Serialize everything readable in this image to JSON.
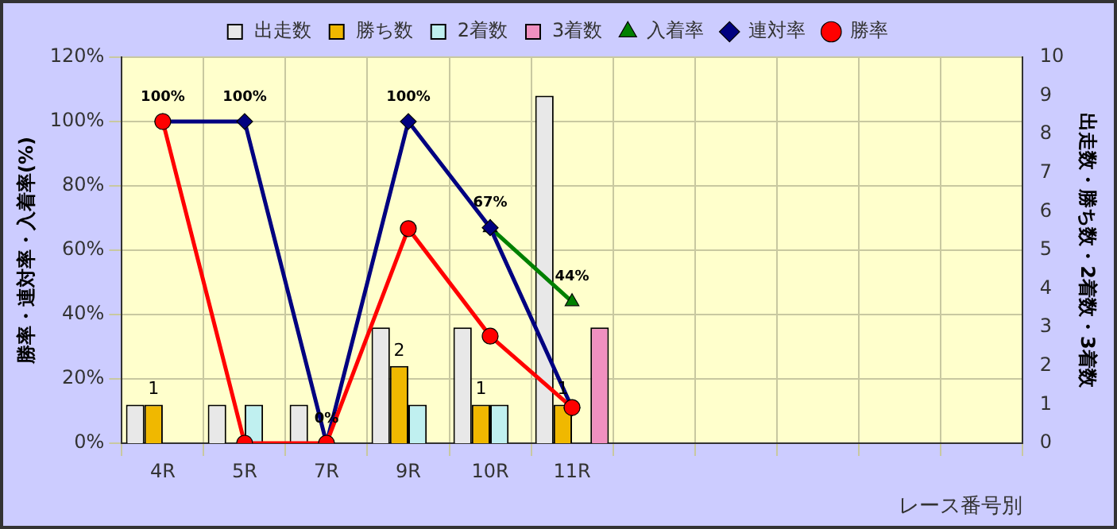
{
  "chart_data": {
    "type": "bar",
    "xlabel": "レース番号別",
    "ylabel": "勝率・連対率・入着率(%)",
    "y2label": "出走数・勝ち数・2着数・3着数",
    "categories": [
      "4R",
      "5R",
      "7R",
      "9R",
      "10R",
      "11R",
      null,
      null,
      null,
      null,
      null
    ],
    "series": [
      {
        "name": "出走数",
        "axis": "y2",
        "color": "#e8e8e8",
        "values": [
          1,
          1,
          1,
          3,
          3,
          9,
          null,
          null,
          null,
          null,
          null
        ]
      },
      {
        "name": "勝ち数",
        "axis": "y2",
        "color": "#f0b800",
        "values": [
          1,
          0,
          0,
          2,
          1,
          1,
          null,
          null,
          null,
          null,
          null
        ],
        "value_labels": [
          "1",
          null,
          null,
          "2",
          "1",
          "1",
          null,
          null,
          null,
          null,
          null
        ]
      },
      {
        "name": "2着数",
        "axis": "y2",
        "color": "#c0f0f0",
        "values": [
          0,
          1,
          0,
          1,
          1,
          0,
          null,
          null,
          null,
          null,
          null
        ]
      },
      {
        "name": "3着数",
        "axis": "y2",
        "color": "#f090c0",
        "values": [
          0,
          0,
          0,
          0,
          0,
          3,
          null,
          null,
          null,
          null,
          null
        ]
      },
      {
        "name": "入着率",
        "type": "line",
        "color": "#008000",
        "marker": "triangle",
        "values": [
          null,
          null,
          null,
          null,
          67,
          44,
          null,
          null,
          null,
          null,
          null
        ],
        "value_labels": [
          null,
          null,
          null,
          null,
          "67%",
          "44%",
          null,
          null,
          null,
          null,
          null
        ]
      },
      {
        "name": "連対率",
        "type": "line",
        "color": "#000080",
        "marker": "diamond",
        "values": [
          100,
          100,
          0,
          100,
          67,
          11,
          null,
          null,
          null,
          null,
          null
        ],
        "value_labels": [
          "100%",
          "100%",
          "0%",
          "100%",
          null,
          null,
          null,
          null,
          null,
          null,
          null
        ]
      },
      {
        "name": "勝率",
        "type": "line",
        "color": "#ff0000",
        "marker": "circle",
        "values": [
          100,
          0,
          0,
          66.7,
          33.3,
          11.1,
          null,
          null,
          null,
          null,
          null
        ]
      }
    ],
    "ylim": [
      0,
      120
    ],
    "yticks": [
      {
        "value": 0,
        "label": "0%"
      },
      {
        "value": 20,
        "label": "20%"
      },
      {
        "value": 40,
        "label": "40%"
      },
      {
        "value": 60,
        "label": "60%"
      },
      {
        "value": 80,
        "label": "80%"
      },
      {
        "value": 100,
        "label": "100%"
      },
      {
        "value": 120,
        "label": "120%"
      }
    ],
    "y2lim": [
      0,
      10
    ],
    "y2ticks": [
      0,
      1,
      2,
      3,
      4,
      5,
      6,
      7,
      8,
      9,
      10
    ],
    "grid": true,
    "legend": "top"
  }
}
